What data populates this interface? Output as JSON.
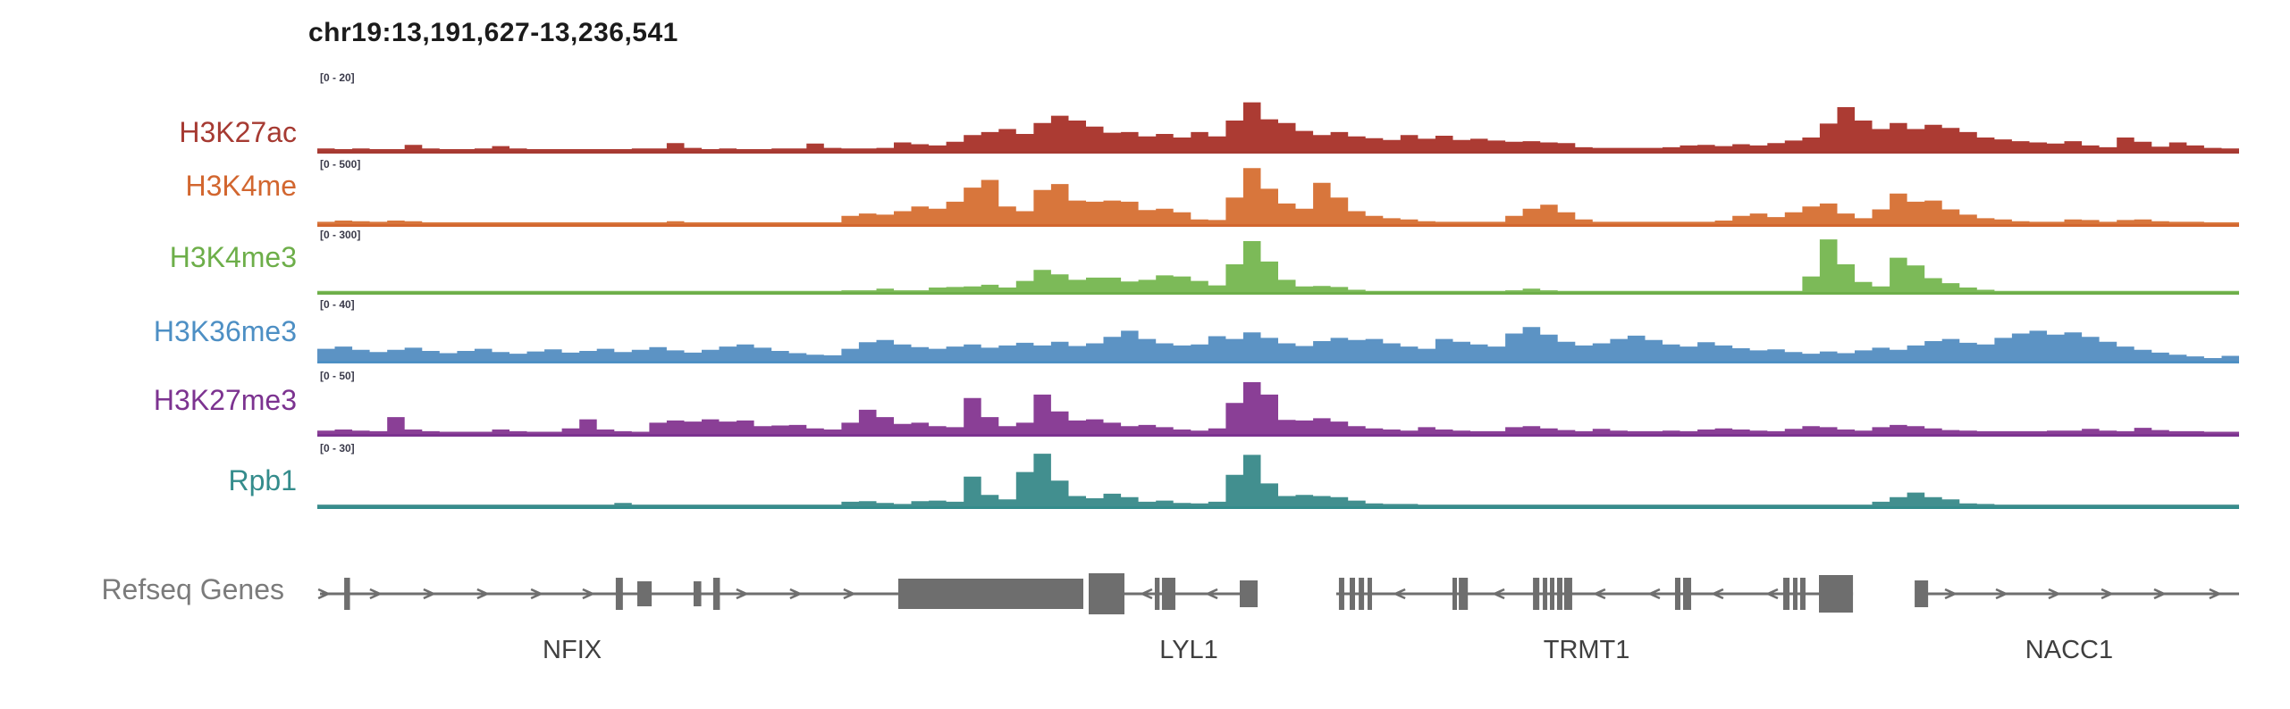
{
  "title": "chr19:13,191,627-13,236,541",
  "chart_data": {
    "type": "area",
    "title": "chr19:13,191,627-13,236,541",
    "x_axis": {
      "chromosome": "chr19",
      "start": "13,191,627",
      "end": "13,236,541"
    },
    "grid": false,
    "tracks": [
      {
        "name": "H3K27ac",
        "scale_label": "[0 - 20]",
        "range": [
          0,
          20
        ],
        "color": "#A63A32",
        "fill": "#AC3B33",
        "profile": [
          4,
          3,
          4,
          3,
          3,
          10,
          4,
          3,
          3,
          4,
          8,
          4,
          3,
          3,
          3,
          3,
          3,
          3,
          4,
          4,
          13,
          5,
          3,
          4,
          3,
          3,
          4,
          4,
          12,
          5,
          4,
          4,
          5,
          14,
          11,
          9,
          15,
          26,
          31,
          36,
          28,
          46,
          58,
          50,
          40,
          30,
          31,
          24,
          28,
          22,
          31,
          24,
          50,
          80,
          52,
          46,
          33,
          26,
          31,
          24,
          21,
          18,
          26,
          20,
          25,
          18,
          20,
          17,
          15,
          16,
          14,
          13,
          6,
          5,
          5,
          5,
          5,
          6,
          9,
          10,
          8,
          11,
          9,
          13,
          17,
          22,
          45,
          72,
          50,
          36,
          46,
          36,
          43,
          38,
          31,
          22,
          19,
          16,
          14,
          12,
          16,
          9,
          6,
          22,
          15,
          7,
          14,
          9,
          5,
          4
        ]
      },
      {
        "name": "H3K4me",
        "scale_label": "[0 - 500]",
        "range": [
          0,
          500
        ],
        "color": "#D2662F",
        "fill": "#D8763C",
        "profile": [
          4,
          6,
          5,
          4,
          6,
          5,
          3,
          3,
          3,
          3,
          3,
          3,
          3,
          3,
          3,
          3,
          3,
          3,
          3,
          3,
          5,
          3,
          3,
          3,
          3,
          3,
          3,
          3,
          3,
          3,
          14,
          18,
          16,
          22,
          30,
          26,
          38,
          62,
          75,
          30,
          22,
          58,
          68,
          40,
          38,
          40,
          38,
          24,
          26,
          20,
          8,
          7,
          45,
          95,
          60,
          35,
          26,
          70,
          45,
          22,
          14,
          10,
          8,
          5,
          4,
          4,
          4,
          4,
          14,
          26,
          33,
          20,
          8,
          4,
          4,
          4,
          4,
          4,
          4,
          4,
          6,
          14,
          18,
          12,
          20,
          30,
          35,
          18,
          10,
          25,
          52,
          38,
          40,
          25,
          16,
          10,
          8,
          5,
          4,
          4,
          8,
          7,
          4,
          7,
          8,
          5,
          4,
          4,
          3,
          3
        ]
      },
      {
        "name": "H3K4me3",
        "scale_label": "[0 - 300]",
        "range": [
          0,
          300
        ],
        "color": "#6DAE49",
        "fill": "#7CBA58",
        "profile": [
          2,
          2,
          2,
          2,
          2,
          2,
          2,
          2,
          2,
          2,
          2,
          2,
          2,
          2,
          2,
          2,
          2,
          2,
          2,
          2,
          2,
          2,
          2,
          2,
          2,
          2,
          2,
          2,
          2,
          2,
          3,
          3,
          6,
          3,
          3,
          8,
          9,
          10,
          13,
          8,
          20,
          40,
          32,
          22,
          26,
          26,
          19,
          22,
          30,
          28,
          20,
          12,
          50,
          92,
          55,
          22,
          10,
          11,
          9,
          4,
          2,
          2,
          2,
          2,
          2,
          2,
          2,
          2,
          3,
          6,
          3,
          2,
          2,
          2,
          2,
          2,
          2,
          2,
          2,
          2,
          2,
          2,
          2,
          2,
          2,
          28,
          95,
          50,
          18,
          10,
          62,
          48,
          25,
          16,
          8,
          4,
          2,
          2,
          2,
          2,
          2,
          2,
          2,
          2,
          2,
          2,
          2,
          2,
          2,
          2
        ]
      },
      {
        "name": "H3K36me3",
        "scale_label": "[0 - 40]",
        "range": [
          0,
          40
        ],
        "color": "#4D8FC4",
        "fill": "#5C93C4",
        "profile": [
          22,
          26,
          20,
          16,
          20,
          24,
          18,
          14,
          18,
          22,
          16,
          13,
          17,
          21,
          15,
          18,
          22,
          16,
          20,
          25,
          19,
          15,
          20,
          26,
          30,
          24,
          18,
          14,
          11,
          10,
          22,
          34,
          38,
          30,
          25,
          22,
          26,
          30,
          24,
          28,
          33,
          28,
          35,
          27,
          32,
          44,
          55,
          40,
          32,
          28,
          30,
          45,
          40,
          52,
          42,
          32,
          27,
          36,
          42,
          38,
          40,
          32,
          26,
          22,
          40,
          35,
          30,
          26,
          50,
          62,
          48,
          35,
          28,
          32,
          40,
          46,
          38,
          30,
          26,
          34,
          28,
          23,
          19,
          21,
          16,
          13,
          17,
          14,
          19,
          24,
          20,
          28,
          36,
          40,
          33,
          30,
          42,
          50,
          55,
          48,
          52,
          44,
          35,
          26,
          20,
          15,
          11,
          8,
          5,
          9
        ]
      },
      {
        "name": "H3K27me3",
        "scale_label": "[0 - 50]",
        "range": [
          0,
          50
        ],
        "color": "#7C3390",
        "fill": "#8A3F96",
        "profile": [
          6,
          8,
          6,
          5,
          30,
          8,
          5,
          4,
          4,
          4,
          8,
          5,
          4,
          4,
          10,
          26,
          8,
          5,
          4,
          20,
          24,
          22,
          26,
          22,
          24,
          14,
          15,
          16,
          10,
          8,
          20,
          43,
          30,
          18,
          20,
          14,
          12,
          64,
          30,
          14,
          20,
          70,
          40,
          24,
          26,
          20,
          14,
          16,
          12,
          8,
          6,
          10,
          55,
          92,
          70,
          25,
          24,
          28,
          22,
          14,
          10,
          8,
          6,
          12,
          8,
          6,
          5,
          5,
          12,
          14,
          10,
          7,
          5,
          9,
          6,
          5,
          5,
          6,
          5,
          8,
          10,
          8,
          6,
          5,
          9,
          14,
          12,
          8,
          6,
          12,
          16,
          14,
          10,
          7,
          6,
          5,
          5,
          5,
          5,
          6,
          6,
          9,
          6,
          5,
          11,
          7,
          5,
          5,
          4,
          4
        ]
      },
      {
        "name": "Rpb1",
        "scale_label": "[0 - 30]",
        "range": [
          0,
          30
        ],
        "color": "#348C8C",
        "fill": "#428F8F",
        "profile": [
          3,
          3,
          3,
          3,
          3,
          3,
          3,
          3,
          3,
          3,
          3,
          3,
          3,
          3,
          3,
          3,
          3,
          6,
          3,
          3,
          3,
          3,
          3,
          3,
          3,
          3,
          3,
          3,
          3,
          3,
          8,
          9,
          6,
          4,
          9,
          10,
          8,
          52,
          20,
          12,
          60,
          92,
          45,
          18,
          14,
          22,
          16,
          8,
          10,
          6,
          5,
          8,
          55,
          90,
          40,
          18,
          20,
          18,
          16,
          10,
          5,
          4,
          4,
          3,
          3,
          3,
          3,
          3,
          3,
          3,
          3,
          3,
          3,
          3,
          3,
          3,
          3,
          3,
          3,
          3,
          3,
          3,
          3,
          3,
          3,
          3,
          3,
          3,
          3,
          8,
          16,
          24,
          16,
          12,
          5,
          4,
          3,
          3,
          3,
          3,
          3,
          3,
          3,
          3,
          3,
          3,
          3,
          3,
          3,
          3
        ]
      }
    ],
    "gene_track": {
      "label": "Refseq Genes",
      "glyph_color": "#6e6e6e",
      "genes": [
        {
          "name": "NFIX",
          "strand": "+",
          "label_pos": 13.26,
          "line": [
            0.14,
            30.23
          ],
          "exons": [
            [
              1.4,
              0.3,
              36
            ],
            [
              15.53,
              0.37,
              36
            ],
            [
              16.65,
              0.75,
              28
            ],
            [
              19.58,
              0.4,
              28
            ],
            [
              20.6,
              0.35,
              36
            ],
            [
              30.23,
              9.63,
              34
            ]
          ],
          "arrows": [
            0.33,
            3.02,
            5.81,
            8.6,
            11.4,
            14.09,
            22.09,
            24.88,
            27.67
          ]
        },
        {
          "name": "LYL1",
          "strand": "-",
          "label_pos": 45.35,
          "line": [
            42.0,
            48.93
          ],
          "exons": [
            [
              40.14,
              1.86,
              46
            ],
            [
              43.58,
              0.25,
              36
            ],
            [
              43.95,
              0.7,
              36
            ],
            [
              48.0,
              0.93,
              30
            ]
          ],
          "arrows": [
            43.16,
            46.56
          ]
        },
        {
          "name": "TRMT1",
          "strand": "-",
          "label_pos": 66.05,
          "line": [
            53.02,
            79.91
          ],
          "exons": [
            [
              53.16,
              0.28,
              36
            ],
            [
              53.72,
              0.28,
              36
            ],
            [
              54.19,
              0.28,
              36
            ],
            [
              54.65,
              0.23,
              36
            ],
            [
              59.07,
              0.23,
              36
            ],
            [
              59.4,
              0.47,
              36
            ],
            [
              63.26,
              0.33,
              36
            ],
            [
              63.77,
              0.23,
              36
            ],
            [
              64.14,
              0.23,
              36
            ],
            [
              64.51,
              0.28,
              36
            ],
            [
              64.88,
              0.42,
              36
            ],
            [
              70.65,
              0.28,
              36
            ],
            [
              71.07,
              0.42,
              36
            ],
            [
              76.28,
              0.33,
              36
            ],
            [
              76.79,
              0.23,
              36
            ],
            [
              77.16,
              0.28,
              36
            ],
            [
              78.14,
              1.77,
              42
            ]
          ],
          "arrows": [
            56.33,
            61.49,
            66.74,
            69.58,
            72.88,
            75.72
          ]
        },
        {
          "name": "NACC1",
          "strand": "+",
          "label_pos": 91.16,
          "line": [
            83.81,
            100.0
          ],
          "exons": [
            [
              83.12,
              0.7,
              30
            ]
          ],
          "arrows": [
            84.98,
            87.63,
            90.37,
            93.12,
            95.86,
            98.74
          ]
        }
      ]
    }
  }
}
